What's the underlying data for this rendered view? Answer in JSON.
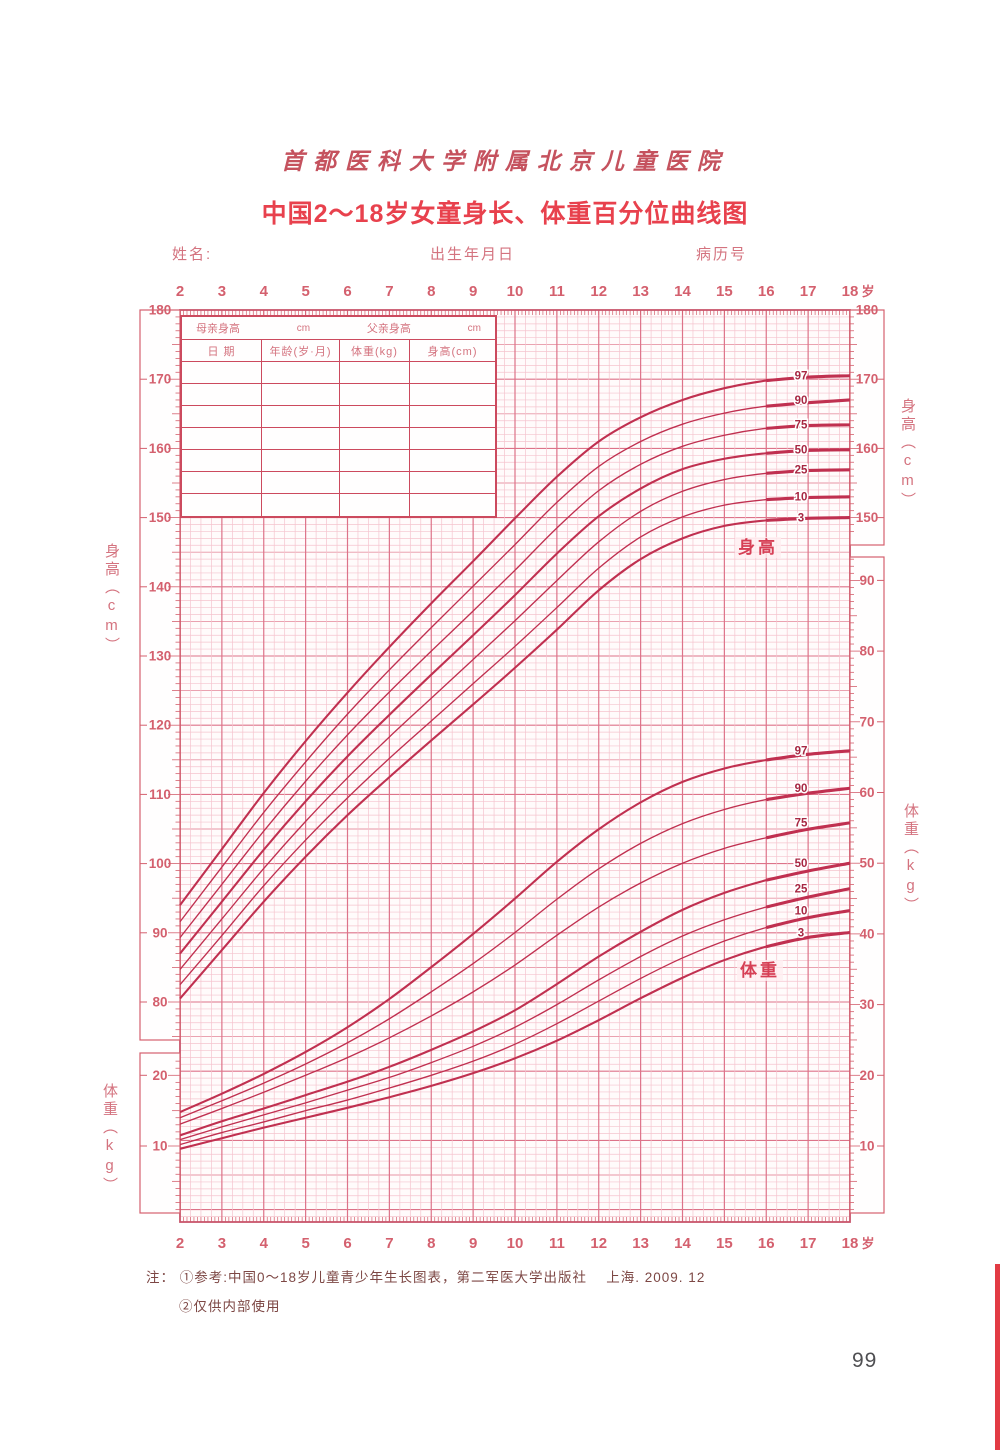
{
  "header": {
    "hospital": "首都医科大学附属北京儿童医院",
    "title": "中国2～18岁女童身长、体重百分位曲线图"
  },
  "fields": {
    "name": "姓名:",
    "birth": "出生年月日",
    "record": "病历号"
  },
  "info_table": {
    "mother_label": "母亲身高",
    "mother_unit": "cm",
    "father_label": "父亲身高",
    "father_unit": "cm",
    "columns": [
      "日  期",
      "年龄(岁·月)",
      "体重(kg)",
      "身高(cm)"
    ],
    "empty_rows": 7
  },
  "chart_data": {
    "type": "line",
    "title": "中国2～18岁女童身长、体重百分位曲线图",
    "x_axis": {
      "unit": "岁",
      "ticks": [
        2,
        3,
        4,
        5,
        6,
        7,
        8,
        9,
        10,
        11,
        12,
        13,
        14,
        15,
        16,
        17,
        18
      ],
      "range": [
        2,
        18
      ]
    },
    "left_height_axis": {
      "label": "身高（cm）",
      "ticks": [
        180,
        170,
        160,
        150,
        140,
        130,
        120,
        110,
        100,
        90,
        80
      ]
    },
    "left_weight_axis": {
      "label": "体重（kg）",
      "ticks": [
        20,
        10
      ]
    },
    "right_height_axis": {
      "label": "身高（cm）",
      "ticks": [
        180,
        170,
        160,
        150
      ]
    },
    "right_weight_axis": {
      "label": "体重（kg）",
      "ticks": [
        90,
        80,
        70,
        60,
        50,
        40,
        30,
        20,
        10
      ]
    },
    "ages": [
      2,
      3,
      4,
      5,
      6,
      7,
      8,
      9,
      10,
      11,
      12,
      13,
      14,
      15,
      16,
      17,
      18
    ],
    "height_series": [
      {
        "percentile": "97",
        "values": [
          94.0,
          102.1,
          110.2,
          117.7,
          124.7,
          131.3,
          137.6,
          143.7,
          149.9,
          155.9,
          161.0,
          164.5,
          167.0,
          168.7,
          169.8,
          170.3,
          170.5
        ]
      },
      {
        "percentile": "90",
        "values": [
          91.6,
          99.5,
          107.4,
          114.7,
          121.6,
          128.0,
          134.1,
          140.1,
          146.1,
          152.2,
          157.4,
          161.0,
          163.5,
          165.1,
          166.1,
          166.6,
          167.0
        ]
      },
      {
        "percentile": "75",
        "values": [
          89.3,
          97.0,
          104.7,
          111.9,
          118.6,
          124.8,
          130.7,
          136.5,
          142.4,
          148.5,
          153.9,
          157.7,
          160.3,
          161.9,
          162.9,
          163.3,
          163.4
        ]
      },
      {
        "percentile": "50",
        "values": [
          87.0,
          94.5,
          102.0,
          109.0,
          115.5,
          121.5,
          127.3,
          133.0,
          138.8,
          144.8,
          150.2,
          154.2,
          157.0,
          158.5,
          159.3,
          159.7,
          159.8
        ]
      },
      {
        "percentile": "25",
        "values": [
          84.7,
          92.0,
          99.3,
          106.1,
          112.4,
          118.3,
          123.9,
          129.5,
          135.1,
          140.9,
          146.5,
          150.9,
          153.8,
          155.5,
          156.4,
          156.8,
          156.9
        ]
      },
      {
        "percentile": "10",
        "values": [
          82.5,
          89.6,
          96.8,
          103.4,
          109.5,
          115.2,
          120.6,
          126.0,
          131.4,
          137.0,
          142.7,
          147.2,
          150.1,
          151.8,
          152.6,
          152.9,
          153.0
        ]
      },
      {
        "percentile": "3",
        "values": [
          80.5,
          87.5,
          94.5,
          101.0,
          107.0,
          112.5,
          117.8,
          123.0,
          128.3,
          133.8,
          139.5,
          144.0,
          147.0,
          148.8,
          149.6,
          149.9,
          150.0
        ]
      }
    ],
    "weight_series": [
      {
        "percentile": "97",
        "values": [
          14.8,
          17.4,
          20.2,
          23.3,
          26.8,
          30.8,
          35.3,
          40.0,
          45.0,
          50.2,
          54.8,
          58.6,
          61.5,
          63.4,
          64.6,
          65.4,
          65.9
        ]
      },
      {
        "percentile": "90",
        "values": [
          14.0,
          16.4,
          18.9,
          21.6,
          24.6,
          28.0,
          31.8,
          35.8,
          40.2,
          44.9,
          49.2,
          52.8,
          55.6,
          57.6,
          59.0,
          59.9,
          60.6
        ]
      },
      {
        "percentile": "75",
        "values": [
          13.1,
          15.3,
          17.6,
          20.0,
          22.5,
          25.3,
          28.4,
          31.8,
          35.6,
          39.8,
          43.8,
          47.2,
          50.0,
          52.1,
          53.6,
          54.8,
          55.7
        ]
      },
      {
        "percentile": "50",
        "values": [
          11.5,
          13.5,
          15.3,
          17.2,
          19.1,
          21.2,
          23.6,
          26.2,
          29.2,
          32.9,
          36.8,
          40.3,
          43.4,
          45.8,
          47.6,
          48.9,
          50.0
        ]
      },
      {
        "percentile": "25",
        "values": [
          10.9,
          12.7,
          14.4,
          16.1,
          17.9,
          19.7,
          21.8,
          24.1,
          26.8,
          30.0,
          33.5,
          36.8,
          39.7,
          42.0,
          43.8,
          45.2,
          46.4
        ]
      },
      {
        "percentile": "10",
        "values": [
          10.2,
          11.9,
          13.4,
          15.0,
          16.5,
          18.2,
          20.0,
          22.0,
          24.4,
          27.3,
          30.5,
          33.7,
          36.6,
          39.0,
          40.9,
          42.3,
          43.3
        ]
      },
      {
        "percentile": "3",
        "values": [
          9.6,
          11.1,
          12.6,
          14.0,
          15.4,
          16.9,
          18.5,
          20.3,
          22.4,
          24.9,
          27.8,
          30.9,
          33.8,
          36.3,
          38.2,
          39.5,
          40.2
        ]
      }
    ],
    "annotations": {
      "height": "身高",
      "weight": "体重"
    },
    "grid": "on",
    "legend_position": "inline-right"
  },
  "footnote": {
    "line1": "注： ①参考:中国0～18岁儿童青少年生长图表，第二军医大学出版社　 上海. 2009. 12",
    "line2": "②仅供内部使用"
  },
  "page_number": "99",
  "colors": {
    "accent": "#d4606e",
    "curve": "#c03050",
    "grid_minor": "#f5c4ce",
    "grid_mid": "#e795a5",
    "grid_major": "#dd7389",
    "border": "#c9556c",
    "title_red": "#e8414d",
    "hospital_red": "#c5525e",
    "edge_mark": "#e23b44"
  }
}
